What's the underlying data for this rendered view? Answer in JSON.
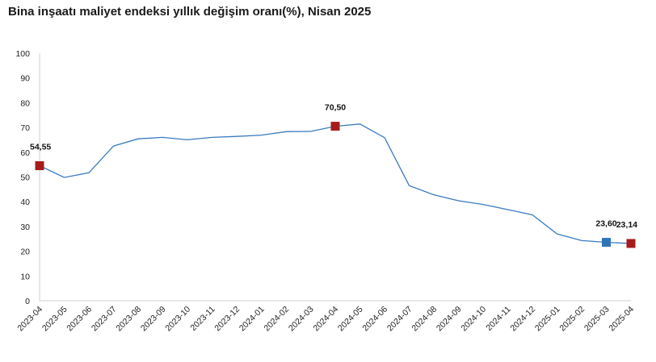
{
  "chart_data": {
    "type": "line",
    "title": "Bina inşaatı maliyet endeksi yıllık değişim oranı(%), Nisan 2025",
    "xlabel": "",
    "ylabel": "",
    "ylim": [
      0,
      100
    ],
    "yticks": [
      "0",
      "10",
      "20",
      "30",
      "40",
      "50",
      "60",
      "70",
      "80",
      "90",
      "100"
    ],
    "grid": false,
    "x": [
      "2023-04",
      "2023-05",
      "2023-06",
      "2023-07",
      "2023-08",
      "2023-09",
      "2023-10",
      "2023-11",
      "2023-12",
      "2024-01",
      "2024-02",
      "2024-03",
      "2024-04",
      "2024-05",
      "2024-06",
      "2024-07",
      "2024-08",
      "2024-09",
      "2024-10",
      "2024-11",
      "2024-12",
      "2025-01",
      "2025-02",
      "2025-03",
      "2025-04"
    ],
    "series": [
      {
        "values": [
          54.55,
          49.8,
          51.7,
          62.5,
          65.4,
          66.0,
          65.0,
          66.0,
          66.4,
          66.9,
          68.3,
          68.4,
          70.5,
          71.4,
          65.9,
          46.5,
          42.8,
          40.4,
          38.9,
          36.8,
          34.7,
          27.0,
          24.3,
          23.6,
          23.14
        ]
      }
    ],
    "line_color": "#3a7bbf",
    "markers": [
      {
        "x": "2023-04",
        "value": 54.55,
        "label": "54,55",
        "color": "#a61c1c"
      },
      {
        "x": "2024-04",
        "value": 70.5,
        "label": "70,50",
        "color": "#a61c1c"
      },
      {
        "x": "2025-03",
        "value": 23.6,
        "label": "23,60",
        "color": "#2e75b6"
      },
      {
        "x": "2025-04",
        "value": 23.14,
        "label": "23,14",
        "color": "#a61c1c"
      }
    ]
  }
}
